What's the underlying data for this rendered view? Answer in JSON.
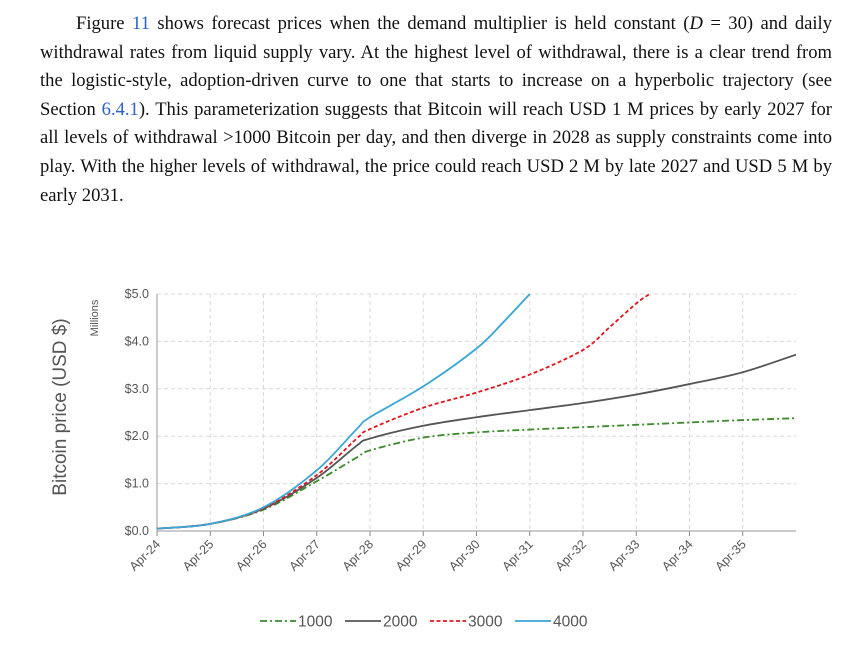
{
  "paragraph": {
    "p1": "Figure ",
    "ref_figure": "11",
    "p2": " shows forecast prices when the demand multiplier is held constant (",
    "var_d": "D",
    "p3": " = 30) and daily withdrawal rates from liquid supply vary. At the highest level of withdrawal, there is a clear trend from the logistic-style, adoption-driven curve to one that starts to increase on a hyperbolic trajectory (see Section ",
    "ref_section": "6.4.1",
    "p4": "). This parameterization suggests that Bitcoin will reach USD 1 M prices by early 2027 for all levels of withdrawal >1000 Bitcoin per day, and then diverge in 2028 as supply constraints come into play. With the higher levels of withdrawal, the price could reach USD 2 M by late 2027 and USD 5 M by early 2031."
  },
  "chart_data": {
    "type": "line",
    "ylabel": "Bitcoin price (USD $)",
    "yunit": "Millions",
    "ylim": [
      0,
      5
    ],
    "yticks": [
      "$0.0",
      "$1.0",
      "$2.0",
      "$3.0",
      "$4.0",
      "$5.0"
    ],
    "xlim": [
      "2024-04",
      "2036-04"
    ],
    "xticks": [
      "Apr-24",
      "Apr-25",
      "Apr-26",
      "Apr-27",
      "Apr-28",
      "Apr-29",
      "Apr-30",
      "Apr-31",
      "Apr-32",
      "Apr-33",
      "Apr-34",
      "Apr-35"
    ],
    "grid": true,
    "legend_position": "bottom",
    "series": [
      {
        "name": "1000",
        "color": "#3a8a2a",
        "dash": "dashdot",
        "x": [
          "2024-04",
          "2025-04",
          "2026-04",
          "2027-04",
          "2028-01",
          "2028-04",
          "2029-04",
          "2030-04",
          "2031-04",
          "2032-04",
          "2033-04",
          "2034-04",
          "2035-04",
          "2036-04"
        ],
        "y": [
          0.05,
          0.15,
          0.45,
          1.05,
          1.55,
          1.7,
          1.97,
          2.08,
          2.14,
          2.19,
          2.24,
          2.29,
          2.34,
          2.38
        ]
      },
      {
        "name": "2000",
        "color": "#555555",
        "dash": "solid",
        "x": [
          "2024-04",
          "2025-04",
          "2026-04",
          "2027-04",
          "2028-01",
          "2028-04",
          "2029-04",
          "2030-04",
          "2031-04",
          "2032-04",
          "2033-04",
          "2034-04",
          "2035-04",
          "2036-04"
        ],
        "y": [
          0.05,
          0.15,
          0.47,
          1.12,
          1.8,
          1.95,
          2.22,
          2.4,
          2.55,
          2.7,
          2.88,
          3.1,
          3.35,
          3.72
        ]
      },
      {
        "name": "3000",
        "color": "#e0161c",
        "dash": "dashed",
        "x": [
          "2024-04",
          "2025-04",
          "2026-04",
          "2027-04",
          "2028-01",
          "2028-04",
          "2029-04",
          "2030-04",
          "2031-04",
          "2032-04",
          "2032-10",
          "2033-04",
          "2033-07"
        ],
        "y": [
          0.05,
          0.15,
          0.48,
          1.18,
          1.95,
          2.15,
          2.6,
          2.92,
          3.3,
          3.82,
          4.3,
          4.8,
          5.0
        ]
      },
      {
        "name": "4000",
        "color": "#3aa6d6",
        "dash": "solid",
        "x": [
          "2024-04",
          "2025-04",
          "2026-04",
          "2027-04",
          "2028-01",
          "2028-04",
          "2029-04",
          "2030-04",
          "2030-10",
          "2031-04"
        ],
        "y": [
          0.05,
          0.15,
          0.5,
          1.28,
          2.15,
          2.4,
          3.05,
          3.85,
          4.4,
          5.0
        ]
      }
    ]
  }
}
